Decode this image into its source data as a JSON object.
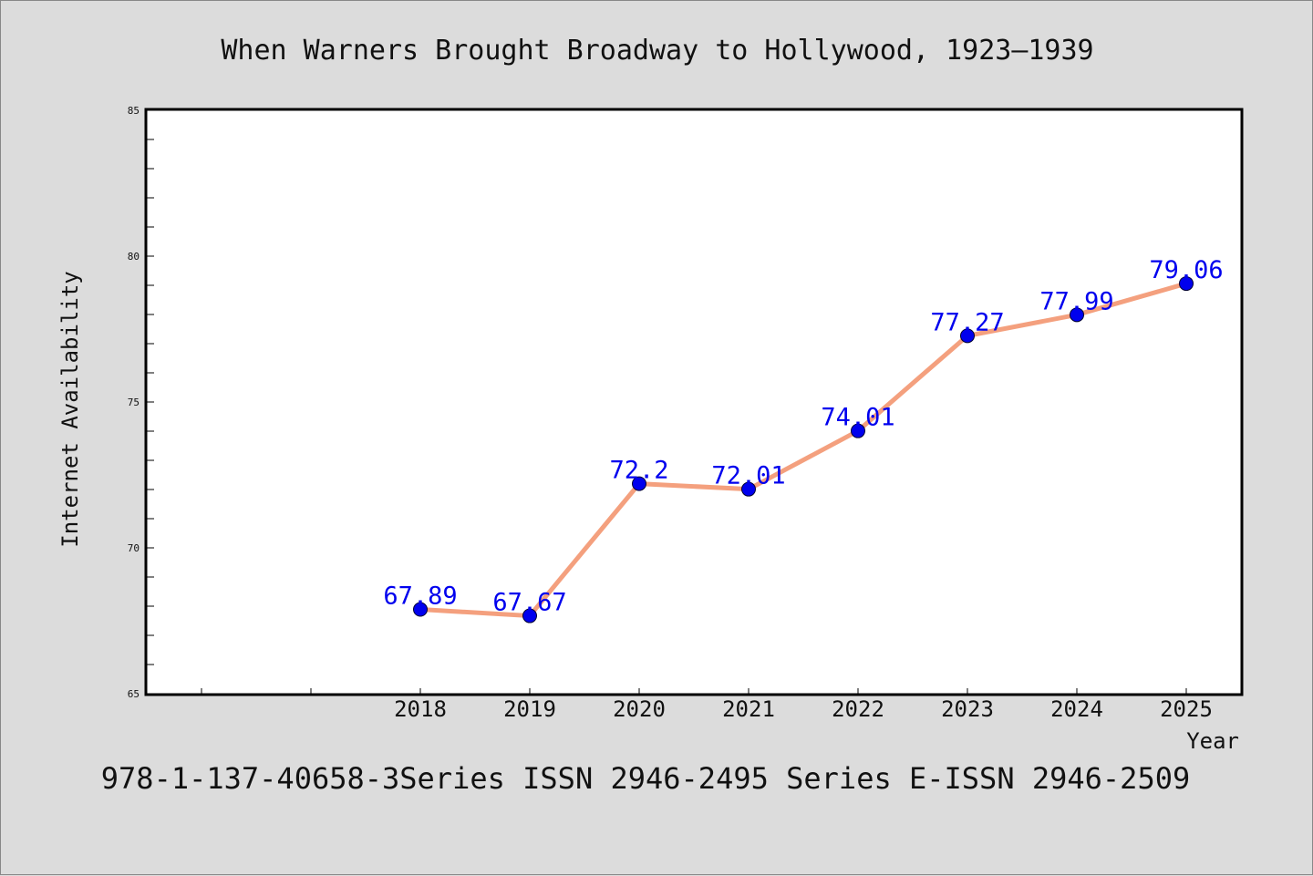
{
  "colors": {
    "background": "#dcdcdc",
    "plot_area": "#ffffff",
    "line": "#f4a07e",
    "marker": "#0000ee",
    "data_label": "#0000ee"
  },
  "footer": "978-1-137-40658-3Series ISSN 2946-2495 Series E-ISSN 2946-2509",
  "chart_data": {
    "type": "line",
    "title": "When Warners Brought Broadway to Hollywood, 1923–1939",
    "xlabel": "Year",
    "ylabel": "Internet Availability",
    "x": [
      "2018",
      "2019",
      "2020",
      "2021",
      "2022",
      "2023",
      "2024",
      "2025"
    ],
    "series": [
      {
        "values": [
          67.89,
          67.67,
          72.2,
          72.01,
          74.01,
          77.27,
          77.99,
          79.06
        ]
      }
    ],
    "data_labels": [
      "67.89",
      "67.67",
      "72.2",
      "72.01",
      "74.01",
      "77.27",
      "77.99",
      "79.06"
    ],
    "ylim": [
      65,
      85
    ],
    "yticks": [
      "65",
      "70",
      "75",
      "80",
      "85"
    ],
    "grid": false,
    "legend": "none"
  }
}
